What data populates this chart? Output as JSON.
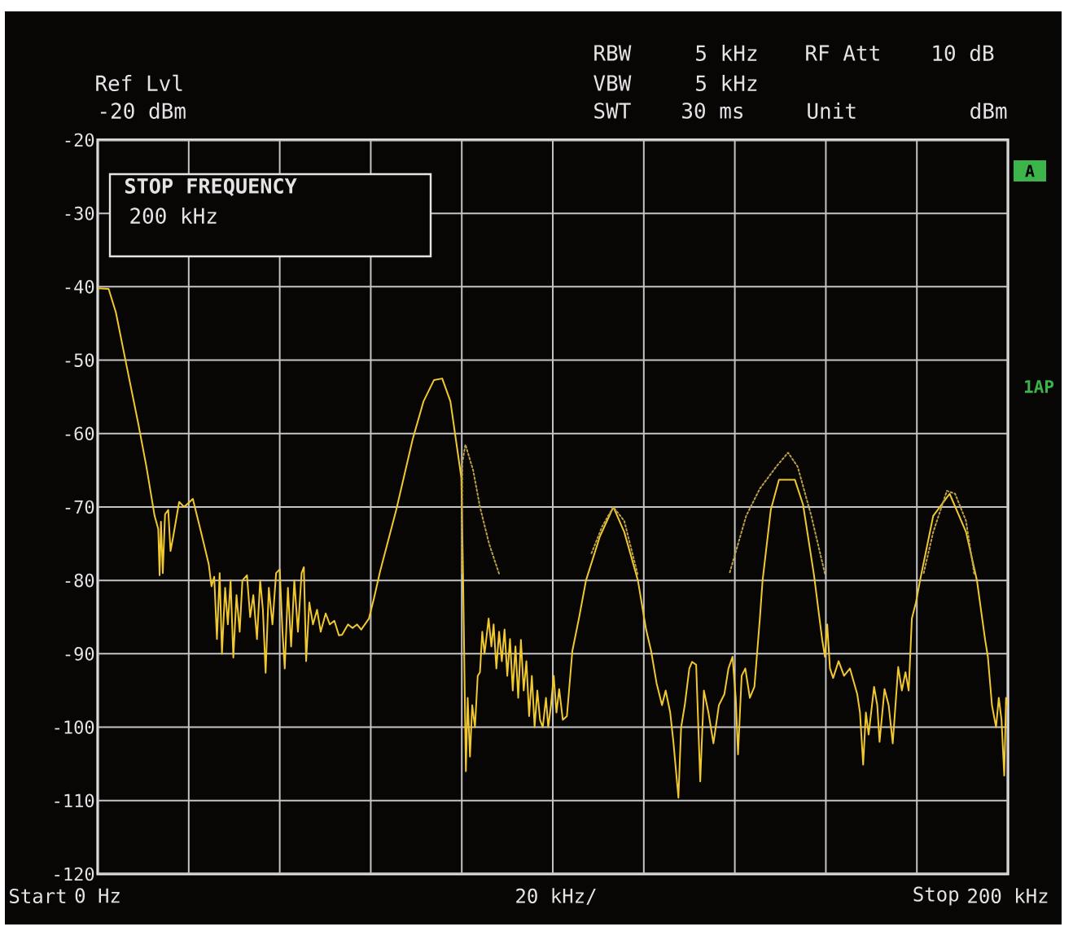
{
  "chart_data": {
    "type": "line",
    "xlabel": "20 kHz/",
    "xlim": [
      0,
      200
    ],
    "xticks": [
      {
        "value": 0,
        "label": "0 Hz"
      },
      {
        "value": 20,
        "label": null
      },
      {
        "value": 40,
        "label": null
      },
      {
        "value": 60,
        "label": null
      },
      {
        "value": 80,
        "label": null
      },
      {
        "value": 100,
        "label": null
      },
      {
        "value": 120,
        "label": null
      },
      {
        "value": 140,
        "label": null
      },
      {
        "value": 160,
        "label": null
      },
      {
        "value": 180,
        "label": null
      },
      {
        "value": 200,
        "label": "200 kHz"
      }
    ],
    "ylim": [
      -120,
      -20
    ],
    "yticks": [
      -120,
      -110,
      -100,
      -90,
      -80,
      -70,
      -60,
      -50,
      -40,
      -30,
      -20
    ],
    "grid": true,
    "series": [
      {
        "color": "#f0c830",
        "line_style": "solid",
        "x": [
          0,
          2.4,
          4.0,
          6.0,
          8.9,
          10.7,
          12.5,
          13.3,
          13.6,
          13.9,
          14.3,
          14.8,
          15.5,
          16.0,
          16.6,
          17.9,
          19.0,
          20.9,
          22.7,
          24.4,
          25.0,
          25.6,
          26.2,
          26.8,
          27.3,
          28.0,
          28.6,
          29.2,
          29.8,
          30.5,
          31.2,
          31.8,
          32.8,
          33.5,
          34.2,
          35.0,
          35.7,
          36.3,
          36.9,
          37.6,
          38.4,
          39.2,
          40.0,
          40.6,
          41.1,
          41.8,
          42.5,
          43.2,
          44.0,
          44.8,
          45.3,
          45.8,
          46.5,
          47.3,
          48.2,
          49.0,
          50.1,
          51.0,
          52.0,
          53.0,
          53.7,
          55.0,
          56.0,
          57.0,
          57.9,
          59.6,
          60.8,
          62.0,
          65.6,
          69.2,
          71.6,
          73.9,
          75.7,
          77.5,
          78.7,
          79.9,
          80.3,
          80.9,
          81.3,
          81.8,
          82.3,
          82.9,
          83.5,
          84.0,
          84.5,
          85.0,
          85.9,
          86.5,
          87.0,
          87.6,
          88.2,
          88.8,
          89.4,
          90.0,
          90.6,
          91.2,
          91.8,
          92.4,
          93.0,
          93.6,
          94.2,
          94.8,
          95.4,
          96.0,
          96.6,
          97.2,
          97.8,
          98.5,
          99.0,
          99.6,
          100.2,
          100.8,
          101.4,
          102.2,
          103.1,
          104.3,
          105.8,
          107.3,
          110.3,
          113.3,
          115.7,
          118.7,
          120.5,
          121.6,
          122.8,
          124.0,
          124.8,
          125.8,
          126.5,
          127.6,
          128.2,
          129.0,
          130.0,
          130.6,
          131.5,
          132.4,
          133.2,
          134.2,
          135.3,
          136.5,
          137.7,
          138.6,
          139.5,
          140.2,
          140.7,
          141.5,
          142.3,
          143.3,
          144.3,
          145.5,
          146.1,
          147.9,
          149.7,
          153.2,
          155.0,
          157.4,
          159.2,
          159.8,
          160.3,
          160.9,
          161.6,
          162.8,
          164.0,
          165.3,
          166.9,
          167.5,
          168.2,
          168.8,
          169.4,
          170.6,
          171.3,
          171.8,
          172.9,
          173.8,
          174.7,
          175.9,
          176.7,
          177.5,
          178.2,
          178.9,
          179.8,
          180.7,
          183.6,
          187.2,
          190.8,
          193.2,
          195.0,
          195.6,
          196.5,
          197.4,
          198.0,
          198.6,
          199.2,
          199.6,
          200.0
        ],
        "values": [
          -40.2,
          -40.3,
          -43.5,
          -49.7,
          -58.6,
          -64.5,
          -71.2,
          -73,
          -79.3,
          -72,
          -79,
          -71,
          -70.4,
          -76,
          -74,
          -69.3,
          -70,
          -68.9,
          -73.4,
          -77.8,
          -80.8,
          -79.5,
          -88,
          -79,
          -90,
          -81,
          -86,
          -80,
          -90.5,
          -82,
          -87,
          -80,
          -79.3,
          -85,
          -82,
          -88,
          -80,
          -84,
          -92.6,
          -81,
          -86,
          -79,
          -78.5,
          -87,
          -92,
          -81,
          -89,
          -80,
          -87,
          -79,
          -78.2,
          -91,
          -83,
          -86,
          -84,
          -87,
          -84.5,
          -86,
          -85.5,
          -87.5,
          -87.4,
          -86,
          -86.5,
          -86,
          -86.7,
          -85.2,
          -82.2,
          -78.9,
          -70.4,
          -60.8,
          -55.6,
          -52.7,
          -52.5,
          -55.6,
          -60.8,
          -66.0,
          -80,
          -106,
          -96,
          -104,
          -97,
          -100,
          -93,
          -92.5,
          -87,
          -90,
          -85.2,
          -89,
          -86,
          -92,
          -87,
          -91,
          -86.7,
          -93,
          -88,
          -95,
          -89,
          -96,
          -88.1,
          -95,
          -91,
          -98.5,
          -93,
          -100,
          -95,
          -99,
          -100,
          -96,
          -100,
          -97,
          -93,
          -98,
          -94.8,
          -99,
          -98.5,
          -89.6,
          -85,
          -80,
          -74.1,
          -70,
          -73.4,
          -80,
          -86.7,
          -89.6,
          -94,
          -97,
          -95,
          -98,
          -102,
          -109.6,
          -100,
          -97,
          -92,
          -91.1,
          -91.5,
          -107.4,
          -95,
          -98,
          -102.2,
          -97,
          -95.5,
          -92,
          -90.4,
          -96,
          -103.7,
          -93,
          -92,
          -96,
          -94.5,
          -85.2,
          -80,
          -70.4,
          -66.3,
          -66.3,
          -69.7,
          -79.3,
          -88.1,
          -90.4,
          -86,
          -92,
          -93.3,
          -91,
          -93,
          -92,
          -95.5,
          -98,
          -105.1,
          -98,
          -101,
          -94.5,
          -97,
          -102,
          -94.8,
          -97,
          -102.2,
          -91.8,
          -95,
          -92.5,
          -95,
          -85.2,
          -83,
          -80,
          -71.2,
          -68.2,
          -73.4,
          -80,
          -88.1,
          -90.4,
          -97,
          -100,
          -96,
          -99,
          -106.6,
          -96,
          -97
        ]
      },
      {
        "color": "#b8a048",
        "line_style": "dotted",
        "x": [
          80.0,
          80.1,
          80.8,
          82.5,
          84.0,
          86.0,
          88.2,
          98,
          108.5,
          110.9,
          113.3,
          115.7,
          118.7,
          130,
          138.9,
          142.5,
          145.5,
          149.1,
          151.7,
          153.8,
          156.8,
          159.8,
          170,
          181.5,
          183.6,
          186.6,
          188.4,
          190.8,
          192.6
        ],
        "values": [
          -79,
          -64,
          -61.5,
          -65,
          -70,
          -75,
          -79.1,
          null,
          -76.3,
          -72.6,
          -70.0,
          -71.9,
          -79.3,
          null,
          -78.9,
          -71.2,
          -67.5,
          -64.5,
          -62.6,
          -64.5,
          -71.2,
          -79.1,
          null,
          -79,
          -73.4,
          -67.8,
          -68.2,
          -71.9,
          -79.1
        ]
      }
    ],
    "annotations": [
      "Ref Lvl",
      "-20 dBm",
      "RBW",
      "5 kHz",
      "VBW",
      "5 kHz",
      "SWT",
      "30 ms",
      "RF Att",
      "10 dB",
      "Unit",
      "dBm",
      "STOP FREQUENCY",
      "200 kHz",
      "A",
      "1AP",
      "Start",
      "Stop"
    ]
  }
}
